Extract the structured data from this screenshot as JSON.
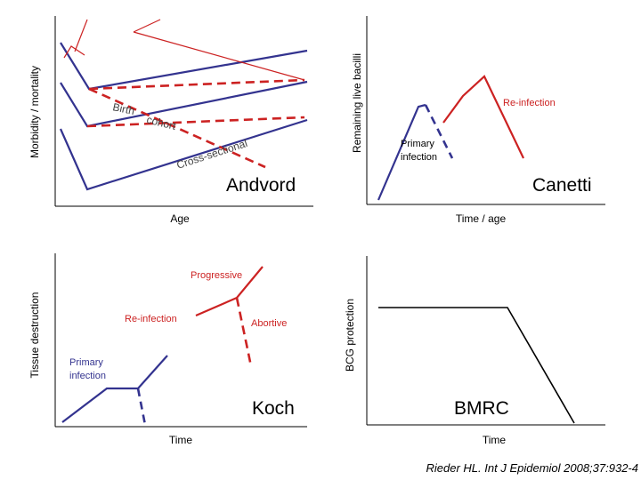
{
  "panels": {
    "andvord": {
      "title": "Andvord",
      "ylabel": "Morbidity / mortality",
      "xlabel": "Age",
      "birth": "Birth",
      "cohort": "cohort",
      "cross_sectional": "Cross-sectional"
    },
    "canetti": {
      "title": "Canetti",
      "ylabel": "Remaining live bacilli",
      "xlabel": "Time / age",
      "primary_line1": "Primary",
      "primary_line2": "infection",
      "reinfection": "Re-infection"
    },
    "koch": {
      "title": "Koch",
      "ylabel": "Tissue destruction",
      "xlabel": "Time",
      "progressive": "Progressive",
      "reinfection": "Re-infection",
      "abortive": "Abortive",
      "primary_line1": "Primary",
      "primary_line2": "infection"
    },
    "bmrc": {
      "title": "BMRC",
      "ylabel": "BCG protection",
      "xlabel": "Time"
    }
  },
  "citation": "Rieder HL.  Int J Epidemiol 2008;37:932-4",
  "colors": {
    "blue": "#33338f",
    "red": "#cc2222"
  }
}
